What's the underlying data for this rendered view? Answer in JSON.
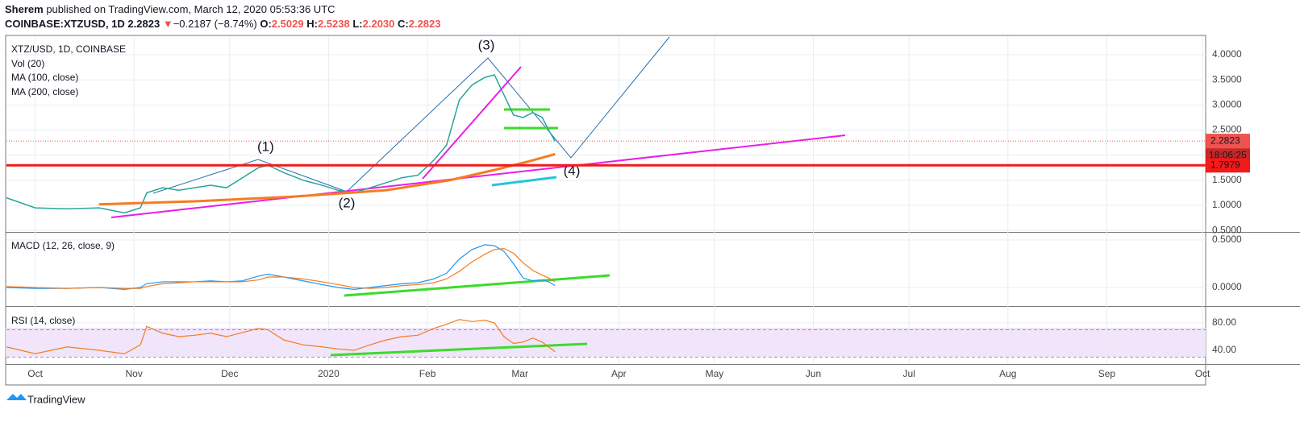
{
  "header": {
    "author": "Sherem",
    "published": "published on TradingView.com, March 12, 2020 05:53:36 UTC",
    "symbol": "COINBASE:XTZUSD, 1D",
    "last": "2.2823",
    "arrow": "▼",
    "change": "−0.2187 (−8.74%)",
    "o_label": "O:",
    "o": "2.5029",
    "h_label": "H:",
    "h": "2.5238",
    "l_label": "L:",
    "l": "2.2030",
    "c_label": "C:",
    "c": "2.2823"
  },
  "chart_data": {
    "type": "line",
    "title": "XTZ/USD, 1D, COINBASE",
    "legend": [
      "Vol (20)",
      "MA (100, close)",
      "MA (200, close)"
    ],
    "annotations": [
      "(1)",
      "(2)",
      "(3)",
      "(4)"
    ],
    "xlim": [
      -9,
      367
    ],
    "xticks": [
      {
        "value": 0,
        "label": "Oct"
      },
      {
        "value": 31,
        "label": "Nov"
      },
      {
        "value": 61,
        "label": "Dec"
      },
      {
        "value": 92,
        "label": "2020"
      },
      {
        "value": 123,
        "label": "Feb"
      },
      {
        "value": 152,
        "label": "Mar"
      },
      {
        "value": 183,
        "label": "Apr"
      },
      {
        "value": 213,
        "label": "May"
      },
      {
        "value": 244,
        "label": "Jun"
      },
      {
        "value": 274,
        "label": "Jul"
      },
      {
        "value": 305,
        "label": "Aug"
      },
      {
        "value": 336,
        "label": "Sep"
      },
      {
        "value": 366,
        "label": "Oct"
      }
    ],
    "x": [
      -9,
      0,
      10,
      20,
      28,
      33,
      35,
      40,
      45,
      50,
      55,
      60,
      65,
      70,
      73,
      78,
      84,
      90,
      95,
      100,
      105,
      110,
      115,
      120,
      125,
      129,
      133,
      137,
      141,
      144,
      147,
      150,
      153,
      156,
      159,
      161,
      163
    ],
    "values": [
      1.15,
      0.95,
      0.93,
      0.95,
      0.85,
      0.95,
      1.25,
      1.35,
      1.3,
      1.35,
      1.4,
      1.35,
      1.55,
      1.75,
      1.8,
      1.65,
      1.5,
      1.4,
      1.3,
      1.25,
      1.35,
      1.45,
      1.55,
      1.6,
      1.9,
      2.2,
      3.1,
      3.4,
      3.55,
      3.6,
      3.2,
      2.8,
      2.75,
      2.85,
      2.75,
      2.5,
      2.28
    ],
    "color": "#26a69a",
    "ylim": [
      0.47,
      4.37
    ],
    "yticks": [
      {
        "value": 0.5,
        "label": "0.5000"
      },
      {
        "value": 1,
        "label": "1.0000"
      },
      {
        "value": 1.5,
        "label": "1.5000"
      },
      {
        "value": 2,
        "label": "2.0000"
      },
      {
        "value": 2.5,
        "label": "2.5000"
      },
      {
        "value": 3,
        "label": "3.0000"
      },
      {
        "value": 3.5,
        "label": "3.5000"
      },
      {
        "value": 4,
        "label": "4.0000"
      }
    ],
    "ma": {
      "x": [
        20,
        50,
        80,
        110,
        130,
        145,
        155,
        163
      ],
      "values": [
        1.02,
        1.08,
        1.17,
        1.3,
        1.5,
        1.72,
        1.88,
        2.02
      ],
      "color": "#f57c1f"
    },
    "last_price": {
      "value": 2.2823,
      "label": "2.2823",
      "countdown": "18:06:25",
      "color": "#ef5350"
    },
    "level": {
      "value": 1.7979,
      "label": "1.7979",
      "color": "#f21a1a"
    },
    "macd": {
      "title": "MACD (12, 26, close, 9)",
      "ylim": [
        -0.195,
        0.568
      ],
      "yticks": [
        {
          "value": 0,
          "label": "0.0000"
        },
        {
          "value": 0.5,
          "label": "0.5000"
        }
      ],
      "series": [
        {
          "color": "#2196f3",
          "values": [
            0.0,
            -0.01,
            -0.01,
            0.0,
            -0.02,
            0.0,
            0.04,
            0.06,
            0.06,
            0.06,
            0.07,
            0.06,
            0.07,
            0.12,
            0.14,
            0.11,
            0.07,
            0.03,
            0.0,
            -0.02,
            0.0,
            0.02,
            0.04,
            0.05,
            0.09,
            0.15,
            0.3,
            0.4,
            0.45,
            0.44,
            0.38,
            0.25,
            0.1,
            0.07,
            0.08,
            0.06,
            0.02
          ]
        },
        {
          "color": "#f57c1f",
          "values": [
            0.01,
            0.0,
            -0.01,
            0.0,
            -0.01,
            -0.01,
            0.01,
            0.04,
            0.05,
            0.06,
            0.06,
            0.06,
            0.06,
            0.08,
            0.11,
            0.11,
            0.09,
            0.06,
            0.03,
            0.0,
            -0.01,
            0.0,
            0.02,
            0.03,
            0.05,
            0.09,
            0.17,
            0.27,
            0.35,
            0.4,
            0.41,
            0.36,
            0.26,
            0.18,
            0.13,
            0.1,
            0.06
          ]
        }
      ]
    },
    "rsi": {
      "title": "RSI (14, close)",
      "ylim": [
        20,
        102.4
      ],
      "yticks": [
        {
          "value": 40,
          "label": "40.00"
        },
        {
          "value": 80,
          "label": "80.00"
        }
      ],
      "bands": [
        30,
        70
      ],
      "color": "#f57c1f",
      "values": [
        45,
        35,
        45,
        40,
        35,
        48,
        75,
        65,
        60,
        62,
        65,
        60,
        66,
        72,
        70,
        55,
        48,
        45,
        42,
        40,
        48,
        55,
        60,
        62,
        72,
        78,
        85,
        82,
        84,
        80,
        60,
        50,
        52,
        58,
        52,
        45,
        38
      ]
    },
    "footer": "TradingView"
  }
}
